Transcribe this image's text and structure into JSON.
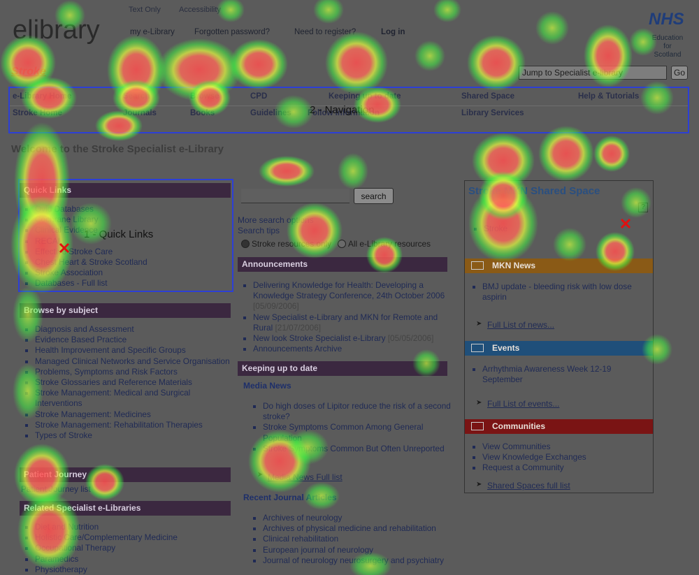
{
  "header": {
    "logo": "elibrary",
    "utility_links": [
      "Text Only",
      "Accessibility"
    ],
    "account_links": [
      "my e-Library",
      "Forgotten password?",
      "Need to register?",
      "Log in"
    ],
    "nhs_logo": "NHS",
    "nhs_org": [
      "Education",
      "for",
      "Scotland"
    ],
    "section": "Stroke",
    "jump_select": "Jump to Specialist e-library",
    "go_button": "Go"
  },
  "navigation": {
    "rows": [
      [
        "e-Library Home",
        "Search",
        "Browse",
        "CPD",
        "Keeping up to date",
        "Shared Space",
        "Help & Tutorials"
      ],
      [
        "Stroke Home",
        "Journals",
        "Books",
        "Guidelines",
        "Follow Information",
        "Library Services"
      ]
    ]
  },
  "annotations": {
    "navigation": "2 - Navigation",
    "quick_links": "1 - Quick Links"
  },
  "page_title": "Welcome to the Stroke Specialist e-Library",
  "left_column": {
    "sections": [
      {
        "heading": "Quick Links",
        "items": [
          "Ovid Databases",
          "Cochrane Library",
          "Clinical Evidence",
          "RECAL",
          "Effective Stroke Care",
          "Chest Heart & Stroke Scotland",
          "Stroke Association",
          "Databases - Full list"
        ]
      },
      {
        "heading": "Browse by subject",
        "items": [
          "Diagnosis and Assessment",
          "Evidence Based Practice",
          "Health Improvement and Specific Groups",
          "Managed Clinical Networks and Service Organisation",
          "Problems, Symptoms and Risk Factors",
          "Stroke Glossaries and Reference Materials",
          "Stroke Management: Medical and Surgical Interventions",
          "Stroke Management: Medicines",
          "Stroke Management: Rehabilitation Therapies",
          "Types of Stroke"
        ]
      },
      {
        "heading": "Patient Journey",
        "items": [
          "Patient Journey list"
        ]
      },
      {
        "heading": "Related Specialist e-Libraries",
        "items": [
          "Diet and Nutrition",
          "Holistic Care/Complementary Medicine",
          "Occupational Therapy",
          "Paramedics",
          "Physiotherapy"
        ]
      }
    ]
  },
  "search": {
    "button": "search",
    "more_options": "More search options",
    "tips": "Search tips",
    "radio_options": [
      "Stroke resources only",
      "All e-Library resources"
    ]
  },
  "middle_column": {
    "announcements": {
      "heading": "Announcements",
      "items": [
        {
          "text": "Delivering Knowledge for Health: Developing a Knowledge Strategy Conference, 24th October 2006",
          "date": "[05/09/2006]"
        },
        {
          "text": "New Specialist e-Library and MKN for Remote and Rural",
          "date": "[21/07/2006]"
        },
        {
          "text": "New look Stroke Specialist e-Library",
          "date": "[05/05/2006]"
        },
        {
          "text": "Announcements Archive",
          "date": null
        }
      ]
    },
    "keeping_up_to_date": {
      "heading": "Keeping up to date"
    },
    "media_news": {
      "title": "Media News",
      "items": [
        "Do high doses of Lipitor reduce the risk of a second stroke?",
        "Stroke Symptoms Common Among General Population",
        "Stroke Symptoms Common But Often Unreported"
      ],
      "full_list": "Media News Full list"
    },
    "journal_articles": {
      "title": "Recent Journal Articles",
      "items": [
        "Archives of neurology",
        "Archives of physical medicine and rehabilitation",
        "Clinical rehabilitation",
        "European journal of neurology",
        "Journal of neurology neurosurgery and psychiatry"
      ]
    }
  },
  "right_column": {
    "shared_space": {
      "title": "Stroke MKN Shared Space",
      "help": "?",
      "items": [
        "Stroke"
      ]
    },
    "news": {
      "heading": "MKN News",
      "items": [
        "BMJ update - bleeding risk with low dose aspirin"
      ],
      "full_list": "Full List of news..."
    },
    "events": {
      "heading": "Events",
      "items": [
        "Arrhythmia Awareness Week 12-19 September"
      ],
      "full_list": "Full List of events..."
    },
    "communities": {
      "heading": "Communities",
      "items": [
        "View Communities",
        "View Knowledge Exchanges",
        "Request a Community"
      ],
      "full_list": "Shared Spaces full list"
    }
  }
}
